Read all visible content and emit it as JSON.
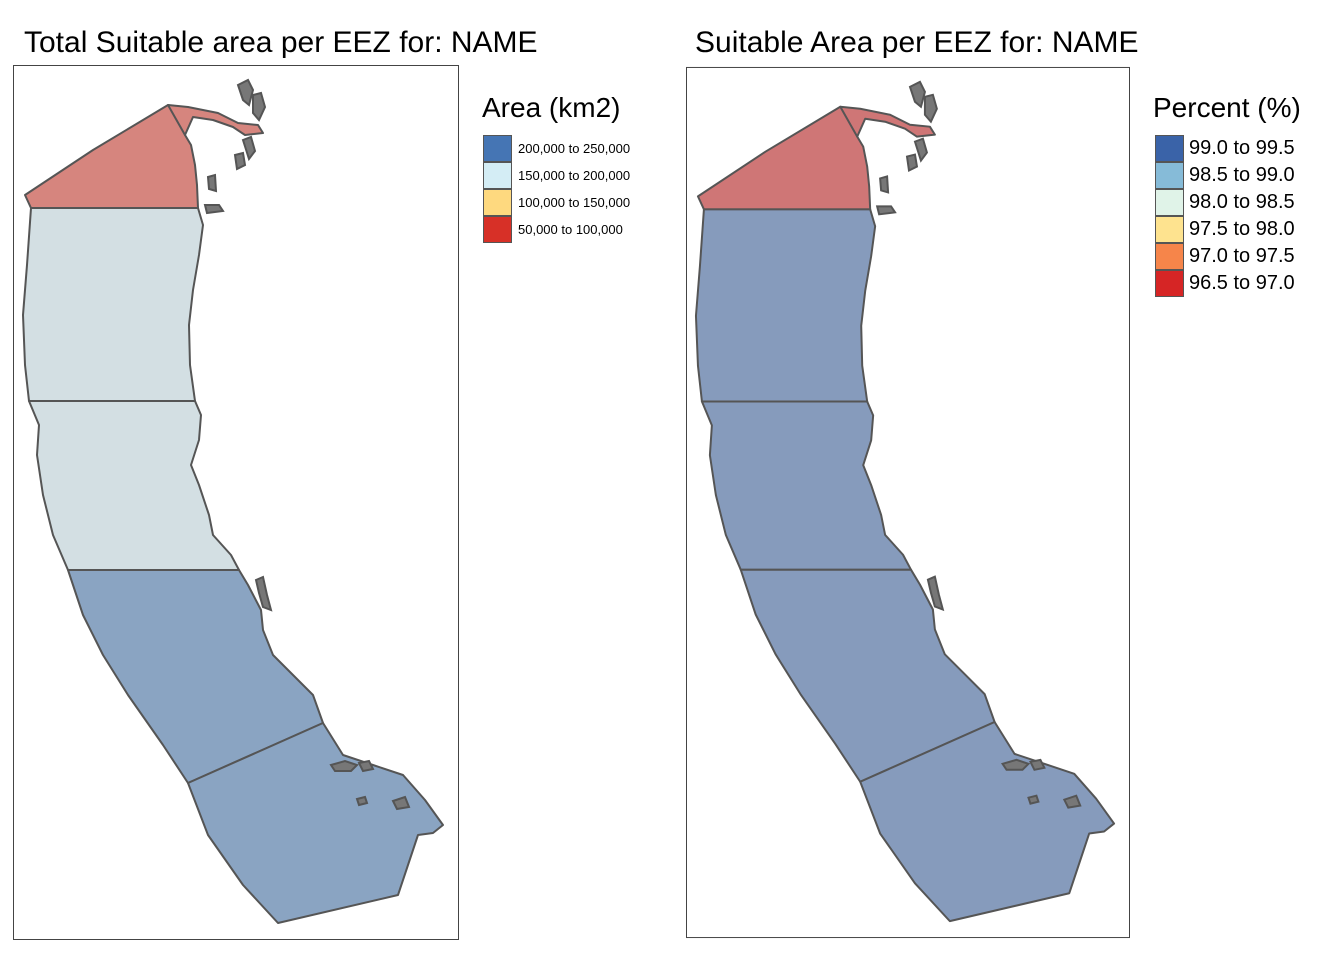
{
  "maps": [
    {
      "title": "Total Suitable area per EEZ for: NAME",
      "legend": {
        "title": "Area (km2)",
        "items": [
          {
            "label": "200,000 to 250,000",
            "color": "#4575b4"
          },
          {
            "label": "150,000 to 200,000",
            "color": "#d4edf5"
          },
          {
            "label": "100,000 to 150,000",
            "color": "#fed97f"
          },
          {
            "label": "50,000 to 100,000",
            "color": "#d73027"
          }
        ]
      },
      "region_colors": [
        "#d6857e",
        "#d3dfe3",
        "#d3dfe3",
        "#8aa4c2",
        "#8aa4c2"
      ]
    },
    {
      "title": "Suitable Area per EEZ for: NAME",
      "legend": {
        "title": "Percent (%)",
        "items": [
          {
            "label": "99.0 to 99.5",
            "color": "#3a63a8"
          },
          {
            "label": "98.5 to 99.0",
            "color": "#86bbd8"
          },
          {
            "label": "98.0 to 98.5",
            "color": "#e0f3e8"
          },
          {
            "label": "97.5 to 98.0",
            "color": "#fee38f"
          },
          {
            "label": "97.0 to 97.5",
            "color": "#f6854a"
          },
          {
            "label": "96.5 to 97.0",
            "color": "#d62525"
          }
        ]
      },
      "region_colors": [
        "#cf7676",
        "#869bbc",
        "#869bbc",
        "#869bbc",
        "#869bbc"
      ]
    }
  ]
}
